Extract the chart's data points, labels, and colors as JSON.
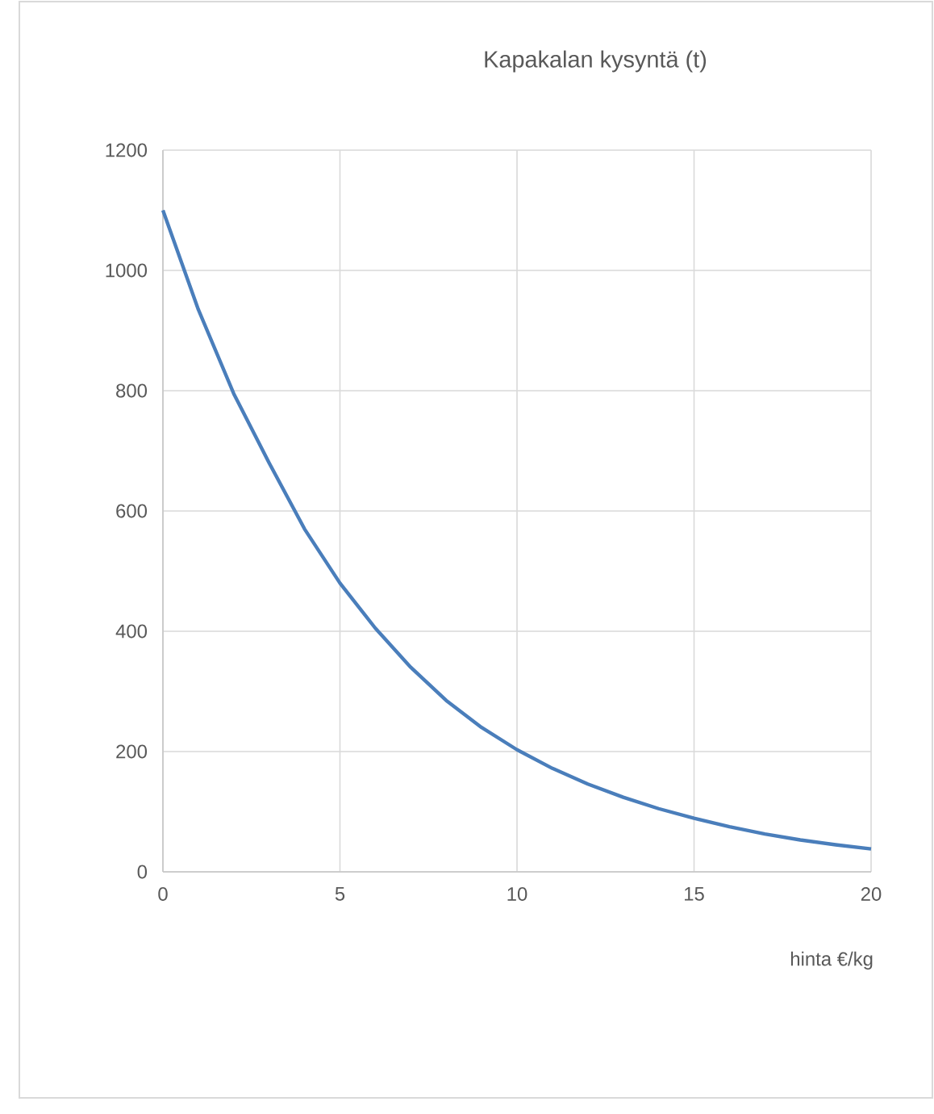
{
  "chart_data": {
    "type": "line",
    "title": "Kapakalan kysyntä (t)",
    "xlabel": "hinta €/kg",
    "x": [
      0,
      1,
      2,
      3,
      4,
      5,
      6,
      7,
      8,
      9,
      10,
      11,
      12,
      13,
      14,
      15,
      16,
      17,
      18,
      19,
      20
    ],
    "series": [
      {
        "color": "#4a7ebb",
        "values": [
          1100,
          935,
          795,
          680,
          570,
          480,
          405,
          340,
          285,
          240,
          203,
          172,
          146,
          124,
          105,
          89,
          75,
          63,
          53,
          45,
          38
        ]
      }
    ],
    "xlim": [
      0,
      20
    ],
    "xticks": [
      0,
      5,
      10,
      15,
      20
    ],
    "ylim": [
      0,
      1200
    ],
    "yticks": [
      0,
      200,
      400,
      600,
      800,
      1000,
      1200
    ],
    "grid": true,
    "marker": "none",
    "line_style": "solid"
  }
}
